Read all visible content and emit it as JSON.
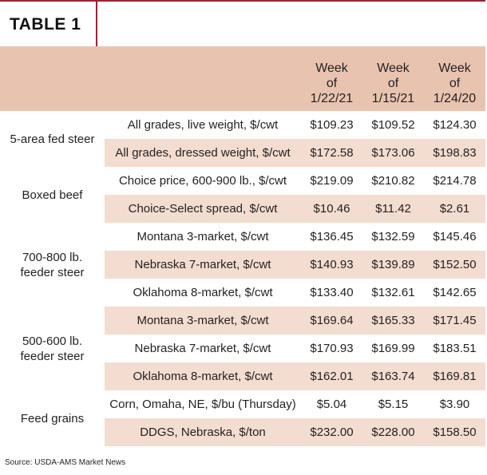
{
  "title": "TABLE 1",
  "columns": [
    {
      "line1": "Week",
      "line2": "of",
      "line3": "1/22/21"
    },
    {
      "line1": "Week",
      "line2": "of",
      "line3": "1/15/21"
    },
    {
      "line1": "Week",
      "line2": "of",
      "line3": "1/24/20"
    }
  ],
  "groups": [
    {
      "category_lines": [
        "5-area fed steer"
      ],
      "rows": [
        {
          "label": "All grades, live weight, $/cwt",
          "values": [
            "$109.23",
            "$109.52",
            "$124.30"
          ]
        },
        {
          "label": "All grades, dressed weight, $/cwt",
          "values": [
            "$172.58",
            "$173.06",
            "$198.83"
          ]
        }
      ]
    },
    {
      "category_lines": [
        "Boxed beef"
      ],
      "rows": [
        {
          "label": "Choice price, 600-900 lb., $/cwt",
          "values": [
            "$219.09",
            "$210.82",
            "$214.78"
          ]
        },
        {
          "label": "Choice-Select spread, $/cwt",
          "values": [
            "$10.46",
            "$11.42",
            "$2.61"
          ]
        }
      ]
    },
    {
      "category_lines": [
        "700-800 lb.",
        "feeder steer"
      ],
      "rows": [
        {
          "label": "Montana 3-market, $/cwt",
          "values": [
            "$136.45",
            "$132.59",
            "$145.46"
          ]
        },
        {
          "label": "Nebraska 7-market, $/cwt",
          "values": [
            "$140.93",
            "$139.89",
            "$152.50"
          ]
        },
        {
          "label": "Oklahoma 8-market, $/cwt",
          "values": [
            "$133.40",
            "$132.61",
            "$142.65"
          ]
        }
      ]
    },
    {
      "category_lines": [
        "500-600 lb.",
        "feeder steer"
      ],
      "rows": [
        {
          "label": "Montana 3-market, $/cwt",
          "values": [
            "$169.64",
            "$165.33",
            "$171.45"
          ]
        },
        {
          "label": "Nebraska 7-market, $/cwt",
          "values": [
            "$170.93",
            "$169.99",
            "$183.51"
          ]
        },
        {
          "label": "Oklahoma 8-market, $/cwt",
          "values": [
            "$162.01",
            "$163.74",
            "$169.81"
          ]
        }
      ]
    },
    {
      "category_lines": [
        "Feed grains"
      ],
      "rows": [
        {
          "label": "Corn, Omaha, NE, $/bu (Thursday)",
          "values": [
            "$5.04",
            "$5.15",
            "$3.90"
          ]
        },
        {
          "label": "DDGS, Nebraska, $/ton",
          "values": [
            "$232.00",
            "$228.00",
            "$158.50"
          ]
        }
      ]
    }
  ],
  "source": "Source: USDA-AMS Market News",
  "colors": {
    "accent": "#9b2335",
    "header_bg": "#e8c4b0",
    "shade_bg": "#f3ddd0"
  }
}
